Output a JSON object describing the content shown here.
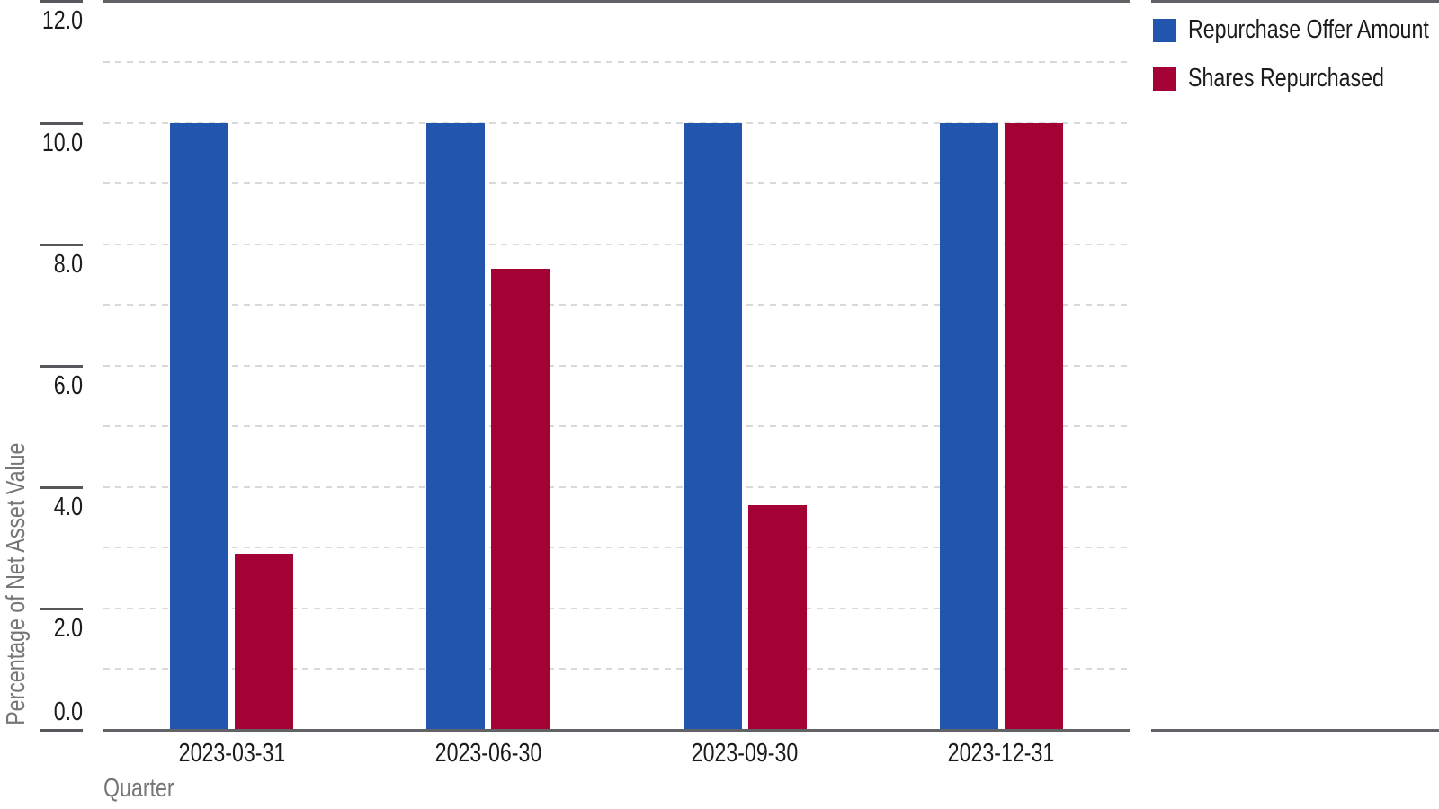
{
  "chart_data": {
    "type": "bar",
    "categories": [
      "2023-03-31",
      "2023-06-30",
      "2023-09-30",
      "2023-12-31"
    ],
    "series": [
      {
        "name": "Repurchase Offer Amount",
        "color": "#2255ad",
        "values": [
          10.0,
          10.0,
          10.0,
          10.0
        ]
      },
      {
        "name": "Shares Repurchased",
        "color": "#a40135",
        "values": [
          2.9,
          7.6,
          3.7,
          10.0
        ]
      }
    ],
    "title": "",
    "xlabel": "Quarter",
    "ylabel": "Percentage of Net Asset Value",
    "ylim": [
      0,
      12
    ],
    "yticks": [
      0,
      2,
      4,
      6,
      8,
      10,
      12
    ],
    "ytick_labels": [
      "0.0",
      "2.0",
      "4.0",
      "6.0",
      "8.0",
      "10.0",
      "12.0"
    ],
    "gridlines": "horizontal, dashed, every 1.0 unit",
    "legend_position": "top-right"
  },
  "legend": {
    "items": [
      {
        "label": "Repurchase Offer Amount",
        "color": "#2255ad"
      },
      {
        "label": "Shares Repurchased",
        "color": "#a40135"
      }
    ]
  },
  "colors": {
    "background": "#ffffff",
    "axis_line": "#616266",
    "tick_mark": "#55575a",
    "gridline": "#d9d9d9",
    "tick_label": "#1b1b1b",
    "axis_title": "#767676",
    "series_blue": "#2255ad",
    "series_red": "#a40135"
  }
}
